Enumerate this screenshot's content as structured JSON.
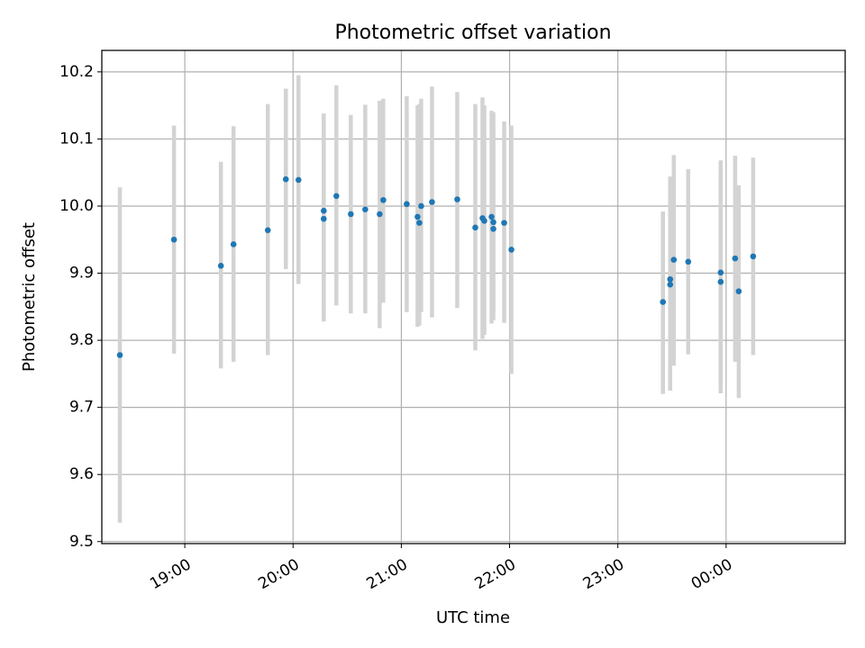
{
  "chart_data": {
    "type": "scatter",
    "title": "Photometric offset variation",
    "xlabel": "UTC time",
    "ylabel": "Photometric offset",
    "x_unit": "UTC time (HH:MM)",
    "x_ticks": [
      {
        "value": "19:00",
        "label": "19:00"
      },
      {
        "value": "20:00",
        "label": "20:00"
      },
      {
        "value": "21:00",
        "label": "21:00"
      },
      {
        "value": "22:00",
        "label": "22:00"
      },
      {
        "value": "23:00",
        "label": "23:00"
      },
      {
        "value": "24:00",
        "label": "00:00"
      }
    ],
    "y_ticks": [
      {
        "value": 9.5,
        "label": "9.5"
      },
      {
        "value": 9.6,
        "label": "9.6"
      },
      {
        "value": 9.7,
        "label": "9.7"
      },
      {
        "value": 9.8,
        "label": "9.8"
      },
      {
        "value": 9.9,
        "label": "9.9"
      },
      {
        "value": 10.0,
        "label": "10.0"
      },
      {
        "value": 10.1,
        "label": "10.1"
      },
      {
        "value": 10.2,
        "label": "10.2"
      }
    ],
    "xlim": [
      "18:14",
      "25:06"
    ],
    "ylim": [
      9.497,
      10.232
    ],
    "grid": true,
    "legend": null,
    "colors": {
      "point": "#1f77b4",
      "errorbar": "#d3d3d3",
      "grid": "#b0b0b0",
      "axes": "#000000"
    },
    "points": [
      {
        "time": "18:24",
        "y": 9.778,
        "low": 9.528,
        "high": 10.028
      },
      {
        "time": "18:54",
        "y": 9.95,
        "low": 9.78,
        "high": 10.12
      },
      {
        "time": "19:20",
        "y": 9.911,
        "low": 9.758,
        "high": 10.066
      },
      {
        "time": "19:27",
        "y": 9.943,
        "low": 9.768,
        "high": 10.119
      },
      {
        "time": "19:46",
        "y": 9.964,
        "low": 9.778,
        "high": 10.152
      },
      {
        "time": "19:56",
        "y": 10.04,
        "low": 9.906,
        "high": 10.175
      },
      {
        "time": "20:03",
        "y": 10.039,
        "low": 9.884,
        "high": 10.195
      },
      {
        "time": "20:17",
        "y": 9.993,
        "low": 9.851,
        "high": 10.135
      },
      {
        "time": "20:17",
        "y": 9.981,
        "low": 9.828,
        "high": 10.138
      },
      {
        "time": "20:24",
        "y": 10.015,
        "low": 9.852,
        "high": 10.18
      },
      {
        "time": "20:32",
        "y": 9.988,
        "low": 9.84,
        "high": 10.136
      },
      {
        "time": "20:40",
        "y": 9.995,
        "low": 9.84,
        "high": 10.151
      },
      {
        "time": "20:48",
        "y": 9.988,
        "low": 9.818,
        "high": 10.157
      },
      {
        "time": "20:50",
        "y": 10.009,
        "low": 9.856,
        "high": 10.16
      },
      {
        "time": "21:03",
        "y": 10.003,
        "low": 9.842,
        "high": 10.164
      },
      {
        "time": "21:09",
        "y": 9.984,
        "low": 9.82,
        "high": 10.15
      },
      {
        "time": "21:10",
        "y": 9.975,
        "low": 9.822,
        "high": 10.152
      },
      {
        "time": "21:11",
        "y": 10.0,
        "low": 9.842,
        "high": 10.16
      },
      {
        "time": "21:17",
        "y": 10.006,
        "low": 9.834,
        "high": 10.178
      },
      {
        "time": "21:31",
        "y": 10.01,
        "low": 9.848,
        "high": 10.17
      },
      {
        "time": "21:41",
        "y": 9.968,
        "low": 9.785,
        "high": 10.152
      },
      {
        "time": "21:45",
        "y": 9.982,
        "low": 9.802,
        "high": 10.162
      },
      {
        "time": "21:46",
        "y": 9.978,
        "low": 9.808,
        "high": 10.15
      },
      {
        "time": "21:50",
        "y": 9.984,
        "low": 9.825,
        "high": 10.142
      },
      {
        "time": "21:51",
        "y": 9.976,
        "low": 9.83,
        "high": 10.14
      },
      {
        "time": "21:51",
        "y": 9.966,
        "low": 9.842,
        "high": 10.126
      },
      {
        "time": "21:57",
        "y": 9.975,
        "low": 9.826,
        "high": 10.126
      },
      {
        "time": "22:01",
        "y": 9.935,
        "low": 9.75,
        "high": 10.12
      },
      {
        "time": "23:25",
        "y": 9.857,
        "low": 9.72,
        "high": 9.992
      },
      {
        "time": "23:29",
        "y": 9.891,
        "low": 9.738,
        "high": 10.044
      },
      {
        "time": "23:29",
        "y": 9.883,
        "low": 9.725,
        "high": 10.04
      },
      {
        "time": "23:31",
        "y": 9.92,
        "low": 9.762,
        "high": 10.076
      },
      {
        "time": "23:39",
        "y": 9.917,
        "low": 9.779,
        "high": 10.055
      },
      {
        "time": "23:57",
        "y": 9.901,
        "low": 9.734,
        "high": 10.068
      },
      {
        "time": "23:57",
        "y": 9.887,
        "low": 9.721,
        "high": 10.053
      },
      {
        "time": "24:05",
        "y": 9.922,
        "low": 9.768,
        "high": 10.075
      },
      {
        "time": "24:07",
        "y": 9.873,
        "low": 9.714,
        "high": 10.031
      },
      {
        "time": "24:15",
        "y": 9.925,
        "low": 9.778,
        "high": 10.072
      }
    ]
  }
}
